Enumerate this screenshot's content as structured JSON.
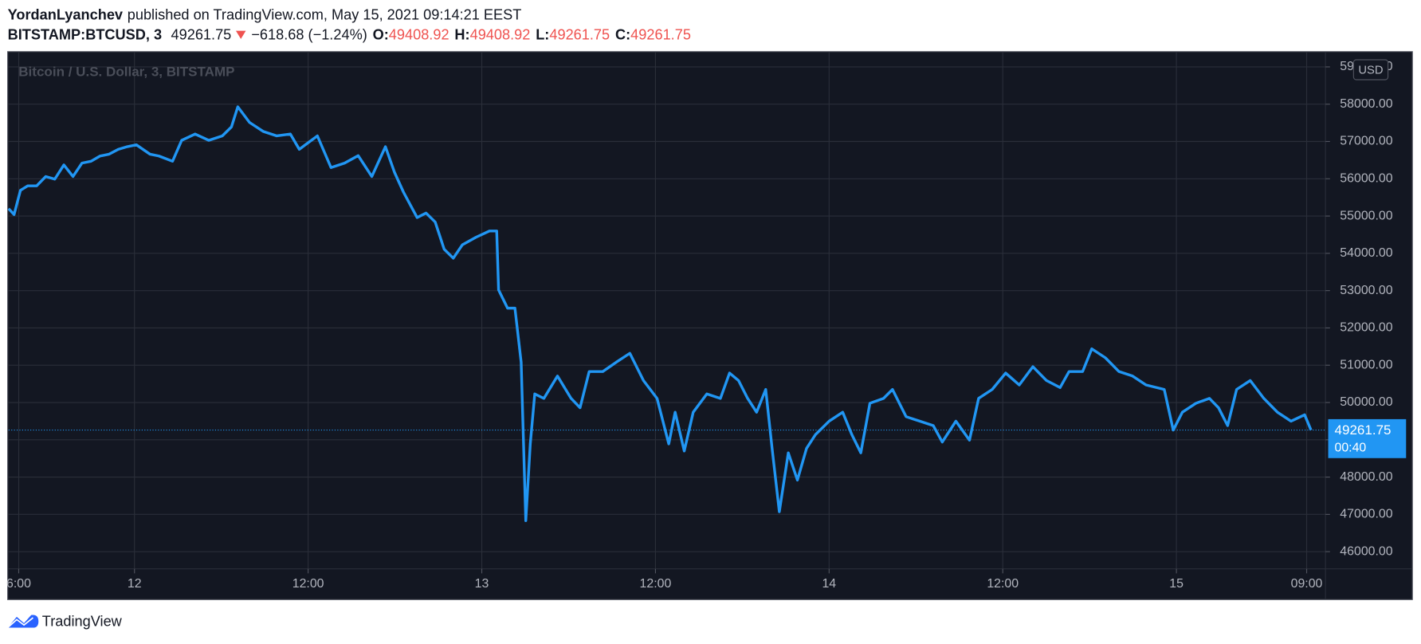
{
  "chart_data": {
    "type": "line",
    "header": {
      "author": "YordanLyanchev",
      "published": "published on TradingView.com, May 15, 2021 09:14:21 EEST",
      "symbol": "BITSTAMP:BTCUSD, 3",
      "change": "−618.68 (−1.24%)",
      "open_label": "O:",
      "open": 49408.92,
      "high_label": "H:",
      "high": 49408.92,
      "low_label": "L:",
      "low": 49261.75,
      "close_label": "C:",
      "close": 49261.75
    },
    "title": "Bitcoin / U.S. Dollar, 3, BITSTAMP",
    "currency": "USD",
    "last_price": 49261.75,
    "countdown": "00:40",
    "brand": "TradingView",
    "color": "#2196f3",
    "grid": true,
    "xlim": [
      15.3,
      106.3
    ],
    "xticks": [
      {
        "value": 16,
        "label": "6:00"
      },
      {
        "value": 24,
        "label": "12"
      },
      {
        "value": 36,
        "label": "12:00"
      },
      {
        "value": 48,
        "label": "13"
      },
      {
        "value": 60,
        "label": "12:00"
      },
      {
        "value": 72,
        "label": "14"
      },
      {
        "value": 84,
        "label": "12:00"
      },
      {
        "value": 96,
        "label": "15"
      },
      {
        "value": 105,
        "label": "09:00"
      }
    ],
    "ylim": [
      45540,
      59385
    ],
    "yticks": [
      {
        "value": 46000,
        "label": "46000.00"
      },
      {
        "value": 47000,
        "label": "47000.00"
      },
      {
        "value": 48000,
        "label": "48000.00"
      },
      {
        "value": 49000,
        "label": "49000.00"
      },
      {
        "value": 50000,
        "label": "50000.00"
      },
      {
        "value": 51000,
        "label": "51000.00"
      },
      {
        "value": 52000,
        "label": "52000.00"
      },
      {
        "value": 53000,
        "label": "53000.00"
      },
      {
        "value": 54000,
        "label": "54000.00"
      },
      {
        "value": 55000,
        "label": "55000.00"
      },
      {
        "value": 56000,
        "label": "56000.00"
      },
      {
        "value": 57000,
        "label": "57000.00"
      },
      {
        "value": 58000,
        "label": "58000.00"
      },
      {
        "value": 59000,
        "label": "59000.00"
      }
    ],
    "x": [
      15.3,
      15.68,
      16.12,
      16.62,
      17.24,
      17.87,
      18.49,
      19.12,
      19.75,
      20.37,
      21.0,
      21.62,
      22.25,
      22.88,
      23.5,
      24.13,
      25.07,
      25.69,
      26.63,
      27.26,
      28.19,
      29.13,
      30.07,
      30.7,
      31.14,
      31.95,
      32.89,
      33.83,
      34.77,
      35.39,
      36.64,
      37.58,
      38.52,
      39.46,
      40.4,
      41.34,
      41.96,
      42.59,
      43.53,
      44.15,
      44.78,
      45.4,
      46.03,
      46.66,
      47.59,
      48.53,
      49.03,
      49.16,
      49.78,
      50.29,
      50.72,
      51.04,
      51.35,
      51.66,
      52.29,
      53.23,
      54.17,
      54.79,
      55.42,
      56.36,
      57.29,
      58.23,
      59.17,
      60.11,
      60.92,
      61.36,
      61.99,
      62.61,
      63.55,
      64.49,
      65.12,
      65.74,
      66.37,
      66.99,
      67.62,
      68.06,
      68.56,
      69.18,
      69.81,
      70.44,
      71.06,
      72.0,
      72.94,
      73.57,
      74.19,
      74.82,
      75.76,
      76.38,
      77.32,
      78.26,
      79.2,
      79.82,
      80.76,
      81.7,
      82.33,
      83.27,
      84.2,
      85.14,
      86.08,
      87.02,
      87.96,
      88.58,
      89.52,
      90.15,
      91.09,
      92.03,
      92.97,
      93.9,
      95.16,
      95.78,
      96.41,
      97.35,
      98.28,
      98.91,
      99.54,
      100.16,
      101.1,
      102.04,
      102.98,
      103.92,
      104.86,
      105.3
    ],
    "values": [
      55200,
      55040,
      55690,
      55810,
      55810,
      56060,
      55990,
      56370,
      56060,
      56420,
      56470,
      56610,
      56660,
      56790,
      56860,
      56910,
      56660,
      56610,
      56470,
      57030,
      57200,
      57030,
      57150,
      57390,
      57930,
      57510,
      57270,
      57150,
      57200,
      56790,
      57150,
      56300,
      56420,
      56620,
      56060,
      56860,
      56180,
      55640,
      54960,
      55080,
      54840,
      54110,
      53870,
      54230,
      54430,
      54600,
      54600,
      53020,
      52530,
      52530,
      51080,
      46830,
      48890,
      50230,
      50110,
      50710,
      50110,
      49860,
      50830,
      50830,
      51080,
      51320,
      50590,
      50110,
      48890,
      49740,
      48700,
      49740,
      50230,
      50110,
      50790,
      50590,
      50110,
      49740,
      50350,
      48770,
      47070,
      48650,
      47920,
      48770,
      49140,
      49500,
      49740,
      49140,
      48650,
      49980,
      50110,
      50350,
      49620,
      49500,
      49380,
      48940,
      49500,
      48990,
      50110,
      50350,
      50790,
      50470,
      50960,
      50590,
      50400,
      50830,
      50830,
      51440,
      51200,
      50830,
      50710,
      50470,
      50350,
      49260,
      49740,
      49980,
      50110,
      49860,
      49380,
      50350,
      50590,
      50110,
      49740,
      49500,
      49670,
      49261.75
    ]
  }
}
